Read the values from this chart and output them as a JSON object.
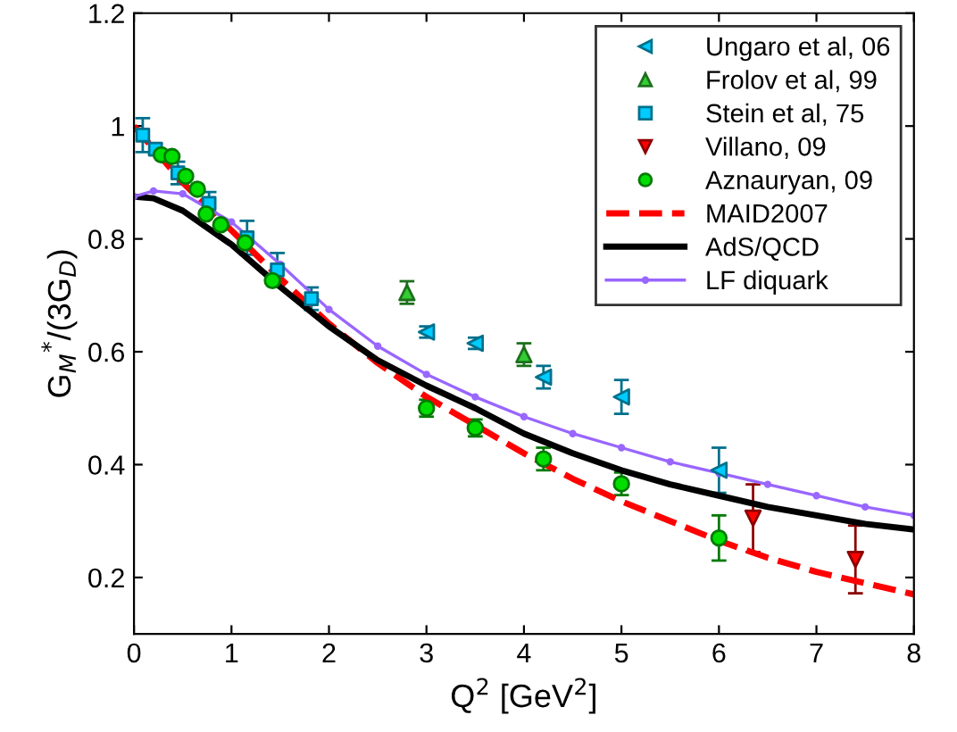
{
  "chart_data": {
    "type": "scatter",
    "xlabel": "Q$^{2}$ [GeV$^{2}$]",
    "ylabel": "G$_{M}$$^{*}$/(3G$_{D}$)",
    "xlim": [
      0,
      8
    ],
    "ylim": [
      0.1,
      1.2
    ],
    "xticks": [
      0,
      1,
      2,
      3,
      4,
      5,
      6,
      7,
      8
    ],
    "yticks": [
      0.2,
      0.4,
      0.6,
      0.8,
      1,
      1.2
    ],
    "grid": false,
    "legend": "top right",
    "series": [
      {
        "name": "Ungaro et al, 06",
        "marker": "triangle-left",
        "color": "#00ccff",
        "x": [
          3.0,
          3.5,
          4.2,
          5.0,
          6.0
        ],
        "values": [
          0.635,
          0.615,
          0.555,
          0.52,
          0.39
        ],
        "errors": [
          0.01,
          0.01,
          0.02,
          0.03,
          0.04
        ]
      },
      {
        "name": "Frolov et al, 99",
        "marker": "triangle",
        "color": "#33cc33",
        "x": [
          2.8,
          4.0
        ],
        "values": [
          0.705,
          0.595
        ],
        "errors": [
          0.02,
          0.02
        ]
      },
      {
        "name": "Stein et al, 75",
        "marker": "square",
        "color": "#00ccff",
        "x": [
          0.09,
          0.22,
          0.45,
          0.77,
          1.16,
          1.47,
          1.82
        ],
        "values": [
          0.984,
          0.959,
          0.917,
          0.863,
          0.802,
          0.745,
          0.694
        ],
        "errors": [
          0.03,
          0.01,
          0.02,
          0.02,
          0.03,
          0.03,
          0.02
        ]
      },
      {
        "name": "Villano, 09",
        "marker": "triangle-down",
        "color": "#ff0000",
        "x": [
          6.35,
          7.4
        ],
        "values": [
          0.305,
          0.232
        ],
        "errors": [
          0.06,
          0.06
        ]
      },
      {
        "name": "Aznauryan, 09",
        "marker": "circle",
        "color": "#00dd00",
        "x": [
          0.28,
          0.39,
          0.53,
          0.65,
          0.74,
          0.89,
          1.14,
          1.42,
          3.0,
          3.5,
          4.2,
          5.0,
          6.0
        ],
        "values": [
          0.949,
          0.946,
          0.911,
          0.888,
          0.844,
          0.825,
          0.793,
          0.726,
          0.5,
          0.465,
          0.41,
          0.366,
          0.27
        ],
        "errors": [
          null,
          null,
          null,
          null,
          null,
          null,
          null,
          null,
          0.015,
          0.015,
          0.02,
          0.02,
          0.04
        ]
      },
      {
        "name": "MAID2007",
        "type": "line",
        "line_style": "dashed",
        "marker": "none",
        "color": "#ff0000",
        "x": [
          0,
          0.5,
          1,
          1.5,
          2,
          2.5,
          3,
          3.5,
          4,
          4.5,
          5,
          5.5,
          6,
          6.5,
          7,
          7.5,
          8
        ],
        "values": [
          1.0,
          0.9,
          0.815,
          0.73,
          0.65,
          0.58,
          0.52,
          0.47,
          0.42,
          0.375,
          0.335,
          0.3,
          0.265,
          0.235,
          0.21,
          0.19,
          0.17
        ]
      },
      {
        "name": "AdS/QCD",
        "type": "line",
        "line_style": "solid",
        "marker": "none",
        "color": "#000000",
        "x": [
          0,
          0.2,
          0.5,
          1,
          1.5,
          2,
          2.5,
          3,
          3.5,
          4,
          4.5,
          5,
          5.5,
          6,
          6.5,
          7,
          7.5,
          8
        ],
        "values": [
          0.875,
          0.872,
          0.85,
          0.79,
          0.715,
          0.645,
          0.585,
          0.54,
          0.5,
          0.455,
          0.42,
          0.39,
          0.365,
          0.345,
          0.325,
          0.31,
          0.295,
          0.285
        ]
      },
      {
        "name": "LF diquark",
        "type": "line",
        "line_style": "solid",
        "marker": "circle",
        "color": "#9966ff",
        "x": [
          0,
          0.2,
          0.5,
          1,
          1.5,
          2,
          2.5,
          3,
          3.5,
          4,
          4.5,
          5,
          5.5,
          6,
          6.5,
          7,
          7.5,
          8
        ],
        "values": [
          0.875,
          0.885,
          0.88,
          0.83,
          0.755,
          0.675,
          0.61,
          0.56,
          0.52,
          0.485,
          0.455,
          0.43,
          0.405,
          0.385,
          0.365,
          0.345,
          0.325,
          0.31
        ]
      }
    ]
  }
}
